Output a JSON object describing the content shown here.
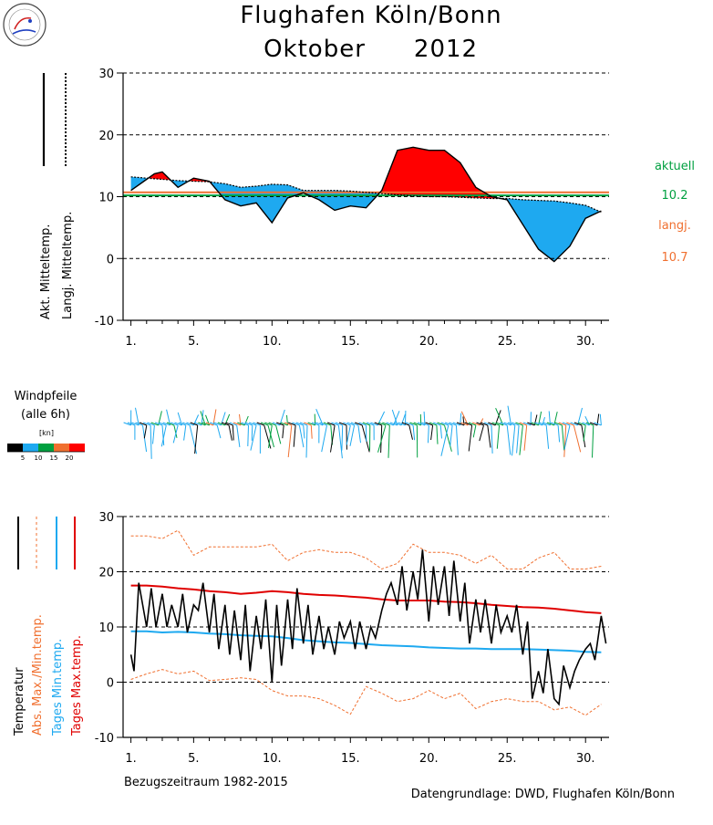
{
  "header": {
    "title_line1": "Flughafen Köln/Bonn",
    "title_month": "Oktober",
    "title_year": "2012",
    "logo_text": "Förderverein Köln/Bonn"
  },
  "colors": {
    "actual": "#000000",
    "longterm": "#000000",
    "warm_fill": "#ff0000",
    "cold_fill": "#1ea9f0",
    "actual_mean_line": "#00a040",
    "longterm_mean_line": "#f07030",
    "abs_extreme": "#f07030",
    "daily_min": "#1ea9f0",
    "daily_max": "#e00000"
  },
  "x_ticks": [
    "1.",
    "5.",
    "10.",
    "15.",
    "20.",
    "25.",
    "30."
  ],
  "legend_top": {
    "actual_label": "Akt. Mitteltemp.",
    "longterm_label": "Langj. Mitteltemp."
  },
  "side_values": {
    "aktuell_label": "aktuell",
    "aktuell_value": "10.2",
    "langj_label": "langj.",
    "langj_value": "10.7"
  },
  "wind": {
    "title_line1": "Windpfeile",
    "title_line2": "(alle 6h)",
    "unit_label": "[kn]",
    "scale_labels": [
      "5",
      "10",
      "15",
      "20"
    ],
    "scale_colors": [
      "#000000",
      "#1ea9f0",
      "#00a040",
      "#f07030",
      "#ff0000"
    ]
  },
  "legend_bottom": {
    "temperature_label": "Temperatur",
    "abs_label": "Abs. Max./Min.temp.",
    "min_label": "Tages Min.temp.",
    "max_label": "Tages Max.temp."
  },
  "footer": {
    "reference_period": "Bezugszeitraum 1982-2015",
    "data_source": "Datengrundlage: DWD, Flughafen Köln/Bonn"
  },
  "chart_data": [
    {
      "type": "line",
      "ylim": [
        -10,
        30
      ],
      "yticks": [
        -10,
        0,
        10,
        20,
        30
      ],
      "xlim": [
        0.5,
        31.5
      ],
      "series": [
        {
          "name": "Akt. Mitteltemp.",
          "x": [
            1,
            2,
            2.5,
            3,
            4,
            5,
            6,
            7,
            8,
            9,
            10,
            11,
            12,
            13,
            14,
            15,
            16,
            17,
            18,
            19,
            20,
            21,
            22,
            23,
            24,
            25,
            26,
            27,
            28,
            29,
            30,
            31
          ],
          "y": [
            11,
            12.8,
            13.7,
            14,
            11.5,
            13,
            12.5,
            9.5,
            8.5,
            9,
            5.8,
            9.8,
            10.6,
            9.5,
            7.8,
            8.5,
            8.2,
            11,
            17.5,
            18,
            17.5,
            17.5,
            15.5,
            11.5,
            10,
            9.5,
            5.5,
            1.5,
            -0.5,
            2,
            6.5,
            7.7
          ]
        },
        {
          "name": "Langj. Mitteltemp.",
          "x": [
            1,
            2,
            3,
            4,
            5,
            6,
            7,
            8,
            9,
            10,
            11,
            12,
            13,
            14,
            15,
            16,
            17,
            18,
            19,
            20,
            21,
            22,
            23,
            24,
            25,
            26,
            27,
            28,
            29,
            30,
            31
          ],
          "y": [
            13.2,
            13,
            12.8,
            12.6,
            12.5,
            12.4,
            12.1,
            11.5,
            11.7,
            12,
            11.9,
            11,
            11,
            11,
            10.9,
            10.7,
            10.5,
            10.3,
            10.1,
            10,
            10,
            9.9,
            9.8,
            9.7,
            9.7,
            9.5,
            9.4,
            9.3,
            9,
            8.6,
            7.5
          ]
        }
      ],
      "hlines": [
        {
          "name": "aktuell",
          "y": 10.2
        },
        {
          "name": "langj.",
          "y": 10.7
        }
      ]
    },
    {
      "type": "line",
      "ylim": [
        -10,
        30
      ],
      "yticks": [
        -10,
        0,
        10,
        20,
        30
      ],
      "xlim": [
        0.5,
        31.5
      ],
      "series": [
        {
          "name": "Abs. Max.temp.",
          "x": [
            1,
            2,
            3,
            4,
            5,
            6,
            7,
            8,
            9,
            10,
            11,
            12,
            13,
            14,
            15,
            16,
            17,
            18,
            19,
            20,
            21,
            22,
            23,
            24,
            25,
            26,
            27,
            28,
            29,
            30,
            31
          ],
          "y": [
            26.5,
            26.5,
            26,
            27.5,
            23,
            24.5,
            24.5,
            24.5,
            24.5,
            25,
            22,
            23.5,
            24,
            23.5,
            23.5,
            22.5,
            20.5,
            21.5,
            25,
            23.5,
            23.5,
            23,
            21.5,
            23,
            20.5,
            20.5,
            22.5,
            23.5,
            20.5,
            20.5,
            21
          ]
        },
        {
          "name": "Abs. Min.temp.",
          "x": [
            1,
            2,
            3,
            4,
            5,
            6,
            7,
            8,
            9,
            10,
            11,
            12,
            13,
            14,
            15,
            16,
            17,
            18,
            19,
            20,
            21,
            22,
            23,
            24,
            25,
            26,
            27,
            28,
            29,
            30,
            31
          ],
          "y": [
            0.5,
            1.5,
            2.3,
            1.5,
            2,
            0.3,
            0.5,
            0.8,
            0.5,
            -1.5,
            -2.5,
            -2.5,
            -3,
            -4.2,
            -5.8,
            -0.8,
            -2,
            -3.5,
            -3,
            -1.5,
            -3,
            -2,
            -4.8,
            -3.5,
            -3,
            -3.5,
            -3.5,
            -5,
            -4.5,
            -6,
            -4
          ]
        },
        {
          "name": "Tages Max.temp.",
          "x": [
            1,
            2,
            3,
            4,
            5,
            6,
            7,
            8,
            9,
            10,
            11,
            12,
            13,
            14,
            15,
            16,
            17,
            18,
            19,
            20,
            21,
            22,
            23,
            24,
            25,
            26,
            27,
            28,
            29,
            30,
            31
          ],
          "y": [
            17.5,
            17.5,
            17.3,
            17,
            16.8,
            16.5,
            16.3,
            16,
            16.2,
            16.5,
            16.3,
            16,
            15.8,
            15.7,
            15.5,
            15.3,
            15,
            14.8,
            14.8,
            14.8,
            14.6,
            14.5,
            14.3,
            14,
            13.8,
            13.6,
            13.5,
            13.3,
            13,
            12.7,
            12.5
          ]
        },
        {
          "name": "Tages Min.temp.",
          "x": [
            1,
            2,
            3,
            4,
            5,
            6,
            7,
            8,
            9,
            10,
            11,
            12,
            13,
            14,
            15,
            16,
            17,
            18,
            19,
            20,
            21,
            22,
            23,
            24,
            25,
            26,
            27,
            28,
            29,
            30,
            31
          ],
          "y": [
            9.2,
            9.2,
            9,
            9.1,
            9,
            8.8,
            8.7,
            8.5,
            8.4,
            8.3,
            8,
            7.6,
            7.4,
            7.2,
            7.1,
            6.9,
            6.7,
            6.6,
            6.5,
            6.3,
            6.2,
            6.1,
            6.1,
            6,
            6,
            6,
            5.9,
            5.8,
            5.7,
            5.5,
            5.4
          ]
        },
        {
          "name": "Temperatur",
          "x": [
            1,
            1.2,
            1.5,
            2,
            2.3,
            2.6,
            3,
            3.3,
            3.6,
            4,
            4.3,
            4.6,
            5,
            5.3,
            5.6,
            6,
            6.3,
            6.6,
            7,
            7.3,
            7.6,
            8,
            8.3,
            8.6,
            9,
            9.3,
            9.6,
            10,
            10.3,
            10.6,
            11,
            11.3,
            11.6,
            12,
            12.3,
            12.6,
            13,
            13.3,
            13.6,
            14,
            14.3,
            14.6,
            15,
            15.3,
            15.6,
            16,
            16.3,
            16.6,
            17,
            17.3,
            17.6,
            18,
            18.3,
            18.6,
            19,
            19.3,
            19.6,
            20,
            20.3,
            20.6,
            21,
            21.3,
            21.6,
            22,
            22.3,
            22.6,
            23,
            23.3,
            23.6,
            24,
            24.3,
            24.6,
            25,
            25.3,
            25.6,
            26,
            26.3,
            26.6,
            27,
            27.3,
            27.6,
            28,
            28.3,
            28.6,
            29,
            29.3,
            29.6,
            30,
            30.3,
            30.6,
            31,
            31.3
          ],
          "y": [
            5,
            2,
            18,
            10,
            17,
            10,
            16,
            10,
            14,
            10,
            16,
            9,
            14,
            13,
            18,
            9,
            16,
            6,
            14,
            5,
            13,
            4,
            14,
            2,
            12,
            6,
            15,
            0,
            14,
            3,
            15,
            6,
            17,
            7,
            14,
            5,
            12,
            6,
            10,
            5,
            11,
            8,
            11,
            6,
            11,
            6,
            10,
            8,
            13,
            16,
            18,
            14,
            21,
            13,
            20,
            15,
            24,
            11,
            21,
            14,
            21,
            12,
            22,
            11,
            18,
            7,
            15,
            9,
            15,
            7,
            14,
            9,
            12,
            9,
            14,
            5,
            11,
            -3,
            2,
            -2,
            6,
            -3,
            -4,
            3,
            -1,
            2,
            4,
            6,
            7,
            4,
            12,
            7
          ]
        }
      ]
    }
  ]
}
